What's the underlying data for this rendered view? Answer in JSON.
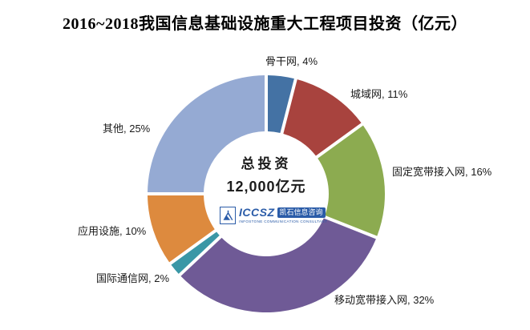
{
  "title": "2016~2018我国信息基础设施重大工程项目投资（亿元）",
  "center": {
    "line1": "总投资",
    "line2": "12,000亿元"
  },
  "logo": {
    "acronym": "ICCSZ",
    "cn_name": "凯石信息咨询",
    "en_name": "INFOSTONE COMMUNICATION CONSULTANT",
    "color": "#2B5CA8"
  },
  "chart_data": {
    "type": "pie",
    "donut": true,
    "title": "2016~2018我国信息基础设施重大工程项目投资（亿元）",
    "center_label": "总投资 12,000亿元",
    "total_value": "12,000亿元",
    "start_angle_deg": -90,
    "direction": "clockwise",
    "legend": "none",
    "label_format": "{name}, {pct}%",
    "segments": [
      {
        "label": "骨干网",
        "value_pct": 4,
        "color": "#4472A4"
      },
      {
        "label": "城域网",
        "value_pct": 11,
        "color": "#A8433E"
      },
      {
        "label": "固定宽带接入网",
        "value_pct": 16,
        "color": "#8CAB50"
      },
      {
        "label": "移动宽带接入网",
        "value_pct": 32,
        "color": "#6F5A96"
      },
      {
        "label": "国际通信网",
        "value_pct": 2,
        "color": "#3A97A6"
      },
      {
        "label": "应用设施",
        "value_pct": 10,
        "color": "#DD8A3E"
      },
      {
        "label": "其他",
        "value_pct": 25,
        "color": "#95AAD3"
      }
    ]
  }
}
